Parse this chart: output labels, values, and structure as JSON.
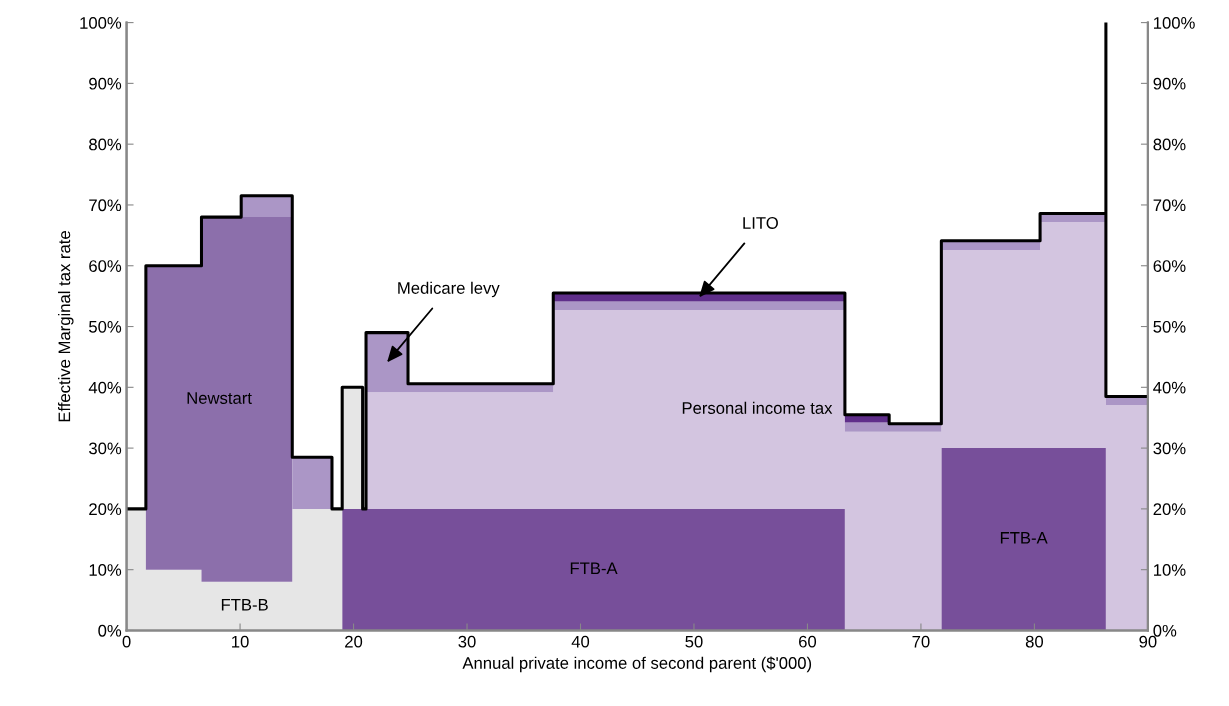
{
  "chart_data": {
    "type": "area",
    "stacked": true,
    "xlabel": "Annual private income of second parent ($'000)",
    "ylabel": "Effective Marginal tax rate",
    "x": [
      0,
      1.7,
      1.7,
      6.6,
      6.6,
      10.1,
      10.1,
      14.6,
      14.6,
      18.1,
      18.1,
      19.0,
      19.0,
      20.8,
      20.8,
      21.1,
      21.1,
      24.8,
      24.8,
      37.6,
      37.6,
      63.3,
      63.3,
      67.2,
      67.2,
      71.8,
      71.8,
      80.5,
      80.5,
      86.3,
      86.3,
      90
    ],
    "series": [
      {
        "name": "FTB-A",
        "color": "#774f9a",
        "values": [
          null,
          null,
          null,
          null,
          null,
          null,
          null,
          null,
          null,
          null,
          null,
          null,
          20,
          20,
          20,
          20,
          20,
          20,
          20,
          20,
          20,
          20,
          null,
          null,
          null,
          null,
          null,
          null,
          null,
          null,
          null,
          null
        ]
      },
      {
        "name": "FTB-A",
        "color": "#774f9a",
        "values": [
          null,
          null,
          null,
          null,
          null,
          null,
          null,
          null,
          null,
          null,
          null,
          null,
          null,
          null,
          null,
          null,
          null,
          null,
          null,
          null,
          null,
          null,
          null,
          null,
          null,
          null,
          30,
          30,
          30,
          30,
          null,
          null
        ]
      },
      {
        "name": "FTB-B",
        "color": "#e6e6e6",
        "values": [
          20,
          20,
          10,
          10,
          8,
          8,
          8,
          8,
          20,
          20,
          20,
          20,
          20,
          20,
          null,
          null,
          null,
          null,
          null,
          null,
          null,
          null,
          null,
          null,
          null,
          null,
          null,
          null,
          null,
          null,
          null,
          null
        ]
      },
      {
        "name": "Newstart",
        "color": "#8c6fab",
        "values": [
          null,
          null,
          50,
          50,
          60,
          60,
          60,
          60,
          null,
          null,
          null,
          null,
          null,
          null,
          null,
          null,
          null,
          null,
          null,
          null,
          null,
          null,
          null,
          null,
          null,
          null,
          null,
          null,
          null,
          null,
          null,
          null
        ]
      },
      {
        "name": "Personal income tax",
        "color": "#d3c5e0",
        "values": [
          null,
          null,
          null,
          null,
          null,
          null,
          null,
          null,
          null,
          null,
          null,
          null,
          null,
          null,
          null,
          null,
          19.2,
          19.2,
          19.2,
          19.2,
          32.7,
          32.7,
          32.7,
          32.7,
          32.7,
          32.7,
          32.6,
          32.6,
          37.2,
          37.2,
          37.1,
          37.1
        ]
      },
      {
        "name": "Medicare levy",
        "color": "#ab96c6",
        "values": [
          null,
          null,
          null,
          null,
          null,
          null,
          3.5,
          3.5,
          8.5,
          8.5,
          null,
          null,
          null,
          null,
          null,
          null,
          9.8,
          9.8,
          1.4,
          1.4,
          1.4,
          1.4,
          1.5,
          1.5,
          1.3,
          1.3,
          1.5,
          1.5,
          1.4,
          1.4,
          1.4,
          1.4
        ]
      },
      {
        "name": "LITO",
        "color": "#5f2e8a",
        "values": [
          null,
          null,
          null,
          null,
          null,
          null,
          null,
          null,
          null,
          null,
          null,
          null,
          null,
          null,
          null,
          null,
          null,
          null,
          null,
          null,
          1.4,
          1.4,
          1.3,
          1.3,
          null,
          null,
          null,
          null,
          null,
          null,
          null,
          null
        ]
      },
      {
        "type": "line",
        "color": "#000000",
        "x": [
          0,
          1.7,
          1.7,
          6.6,
          6.6,
          10.1,
          10.1,
          14.6,
          14.6,
          18.1,
          18.1,
          19.0,
          19.0,
          20.8,
          20.8,
          21.1,
          21.1,
          24.8,
          24.8,
          37.6,
          37.6,
          63.3,
          63.3,
          67.2,
          67.2,
          71.8,
          71.8,
          80.5,
          80.5,
          86.3,
          86.3,
          86.3,
          90
        ],
        "values": [
          20,
          20,
          60,
          60,
          68,
          68,
          71.5,
          71.5,
          28.5,
          28.5,
          20,
          20,
          40,
          40,
          20,
          20,
          49,
          49,
          40.6,
          40.6,
          55.5,
          55.5,
          35.5,
          35.5,
          34,
          34,
          64.1,
          64.1,
          68.6,
          68.6,
          100,
          38.5,
          38.5
        ]
      }
    ],
    "xlim": [
      0,
      90
    ],
    "xticks": [
      0,
      10,
      20,
      30,
      40,
      50,
      60,
      70,
      80,
      90
    ],
    "ylim": [
      0,
      100
    ],
    "yticks": [
      {
        "value": 0,
        "label": "0%"
      },
      {
        "value": 10,
        "label": "10%"
      },
      {
        "value": 20,
        "label": "20%"
      },
      {
        "value": 30,
        "label": "30%"
      },
      {
        "value": 40,
        "label": "40%"
      },
      {
        "value": 50,
        "label": "50%"
      },
      {
        "value": 60,
        "label": "60%"
      },
      {
        "value": 70,
        "label": "70%"
      },
      {
        "value": 80,
        "label": "80%"
      },
      {
        "value": 90,
        "label": "90%"
      },
      {
        "value": 100,
        "label": "100%"
      }
    ],
    "y2lim": [
      0,
      100
    ],
    "y2ticks": [
      {
        "value": 0,
        "label": "0%"
      },
      {
        "value": 10,
        "label": "10%"
      },
      {
        "value": 20,
        "label": "20%"
      },
      {
        "value": 30,
        "label": "30%"
      },
      {
        "value": 40,
        "label": "40%"
      },
      {
        "value": 50,
        "label": "50%"
      },
      {
        "value": 60,
        "label": "60%"
      },
      {
        "value": 70,
        "label": "70%"
      },
      {
        "value": 80,
        "label": "80%"
      },
      {
        "value": 90,
        "label": "90%"
      },
      {
        "value": 100,
        "label": "100%"
      }
    ],
    "grid": false
  }
}
